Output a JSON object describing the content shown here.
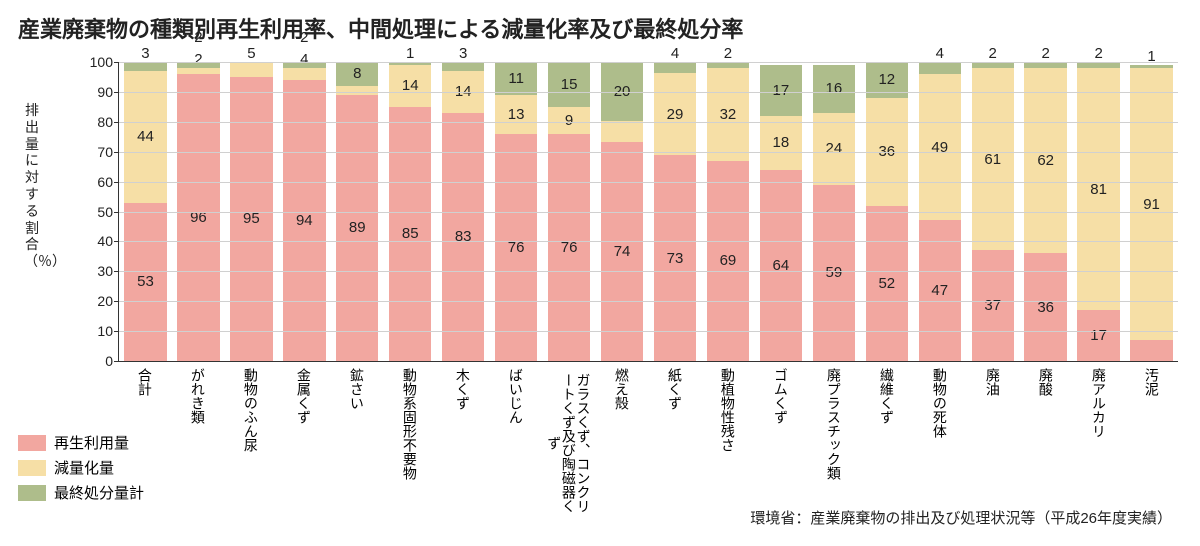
{
  "title": "産業廃棄物の種類別再生利用率、中間処理による減量化率及び最終処分率",
  "chart": {
    "type": "stacked-bar-100",
    "ylabel": "排出量に対する割合（％）",
    "ylim": [
      0,
      100
    ],
    "ytick_step": 10,
    "background_color": "#ffffff",
    "grid_color": "#d0d0d0",
    "axis_color": "#333333",
    "label_fontsize": 14,
    "value_fontsize": 15,
    "title_fontsize": 22,
    "bar_width_ratio": 0.8,
    "series": [
      {
        "key": "recycle",
        "label": "再生利用量",
        "color": "#f2a7a0"
      },
      {
        "key": "reduce",
        "label": "減量化量",
        "color": "#f6dfa6"
      },
      {
        "key": "disposal",
        "label": "最終処分量計",
        "color": "#aebd8b"
      }
    ],
    "categories": [
      {
        "label": "合計",
        "recycle": 53,
        "reduce": 44,
        "disposal": 3
      },
      {
        "label": "がれき類",
        "recycle": 96,
        "reduce": 2,
        "disposal": 2
      },
      {
        "label": "動物のふん尿",
        "recycle": 95,
        "reduce": 5,
        "disposal": 0
      },
      {
        "label": "金属くず",
        "recycle": 94,
        "reduce": 4,
        "disposal": 2
      },
      {
        "label": "鉱さい",
        "recycle": 89,
        "reduce": 3,
        "disposal": 8
      },
      {
        "label": "動物系固形不要物",
        "recycle": 85,
        "reduce": 14,
        "disposal": 1
      },
      {
        "label": "木くず",
        "recycle": 83,
        "reduce": 14,
        "disposal": 3
      },
      {
        "label": "ばいじん",
        "recycle": 76,
        "reduce": 13,
        "disposal": 11
      },
      {
        "label": "ガラスくず、コンクリートくず及び陶磁器くず",
        "recycle": 76,
        "reduce": 9,
        "disposal": 15
      },
      {
        "label": "燃え殻",
        "recycle": 74,
        "reduce": 7,
        "disposal": 20
      },
      {
        "label": "紙くず",
        "recycle": 73,
        "reduce": 29,
        "disposal": 4
      },
      {
        "label": "動植物性残さ",
        "recycle": 69,
        "reduce": 32,
        "disposal": 2
      },
      {
        "label": "ゴムくず",
        "recycle": 64,
        "reduce": 18,
        "disposal": 17
      },
      {
        "label": "廃プラスチック類",
        "recycle": 59,
        "reduce": 24,
        "disposal": 16
      },
      {
        "label": "繊維くず",
        "recycle": 52,
        "reduce": 36,
        "disposal": 12
      },
      {
        "label": "動物の死体",
        "recycle": 47,
        "reduce": 49,
        "disposal": 4
      },
      {
        "label": "廃油",
        "recycle": 37,
        "reduce": 61,
        "disposal": 2
      },
      {
        "label": "廃酸",
        "recycle": 36,
        "reduce": 62,
        "disposal": 2
      },
      {
        "label": "廃アルカリ",
        "recycle": 17,
        "reduce": 81,
        "disposal": 2
      },
      {
        "label": "汚泥",
        "recycle": 7,
        "reduce": 91,
        "disposal": 1
      }
    ]
  },
  "source": "環境省：産業廃棄物の排出及び処理状況等（平成26年度実績）"
}
